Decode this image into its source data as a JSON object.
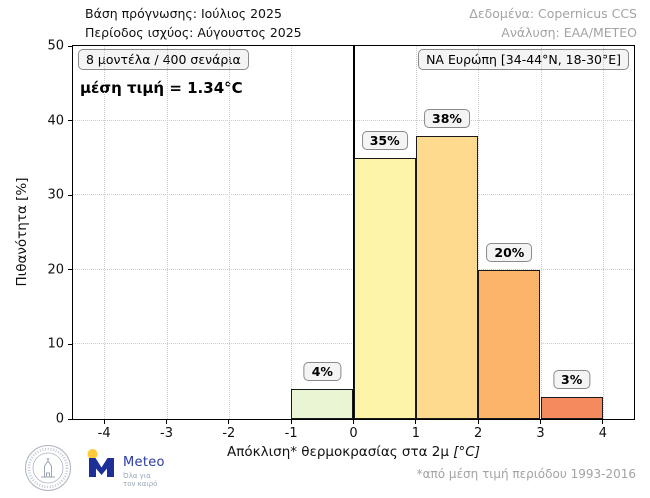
{
  "header": {
    "left_line1": "Βάση πρόγνωσης: Ιούλιος 2025",
    "left_line2": "Περίοδος ισχύος: Αύγουστος 2025",
    "right_line1": "Δεδομένα: Copernicus CCS",
    "right_line2": "Ανάλυση: ΕΑΑ/ΜΕΤΕΟ"
  },
  "plot_annotations": {
    "models_box": "8 μοντέλα / 400 σενάρια",
    "mean_label": "μέση τιμή = 1.34°C",
    "region_box": "ΝΑ Ευρώπη [34-44°N, 18-30°E]"
  },
  "chart_data": {
    "type": "bar",
    "title": "",
    "xlabel": "Απόκλιση* θερμοκρασίας στα 2μ",
    "xlabel_unit": "[°C]",
    "ylabel": "Πιθανότητα [%]",
    "xlim": [
      -4.5,
      4.5
    ],
    "ylim": [
      0,
      50
    ],
    "x_ticks": [
      -4,
      -3,
      -2,
      -1,
      0,
      1,
      2,
      3,
      4
    ],
    "x_tick_labels": [
      "-4",
      "-3",
      "-2",
      "-1",
      "0",
      "1",
      "2",
      "3",
      "4"
    ],
    "y_ticks": [
      0,
      10,
      20,
      30,
      40,
      50
    ],
    "y_tick_labels": [
      "0",
      "10",
      "20",
      "30",
      "40",
      "50"
    ],
    "grid": true,
    "grid_style": "dotted",
    "legend_position": "none",
    "zero_line_x": 0,
    "bins": [
      [
        -1,
        0
      ],
      [
        0,
        1
      ],
      [
        1,
        2
      ],
      [
        2,
        3
      ],
      [
        3,
        4
      ]
    ],
    "values": [
      4,
      35,
      38,
      20,
      3
    ],
    "bar_labels": [
      "4%",
      "35%",
      "38%",
      "20%",
      "3%"
    ],
    "bar_colors": [
      "#eaf6d3",
      "#fdf3a9",
      "#fdda8d",
      "#fcb469",
      "#f58a5f"
    ],
    "bar_edge_color": "#1a1a1a",
    "mean_c": 1.34
  },
  "footer": {
    "footnote": "*από μέση τιμή περιόδου 1993-2016"
  },
  "logos": {
    "seal_icon": "national-observatory-of-athens-seal",
    "meteo_name": "Meteo",
    "meteo_tagline_line1": "Όλα για",
    "meteo_tagline_line2": "τον καιρό"
  },
  "colors": {
    "zero_line": "#000000",
    "grid": "#cccccc",
    "annotation_bg": "#f4f4f4",
    "annotation_border": "#8a8a8a",
    "header_muted": "#a3a3a3",
    "meteo_blue": "#1e2f97",
    "meteo_yellow": "#ffc937"
  }
}
